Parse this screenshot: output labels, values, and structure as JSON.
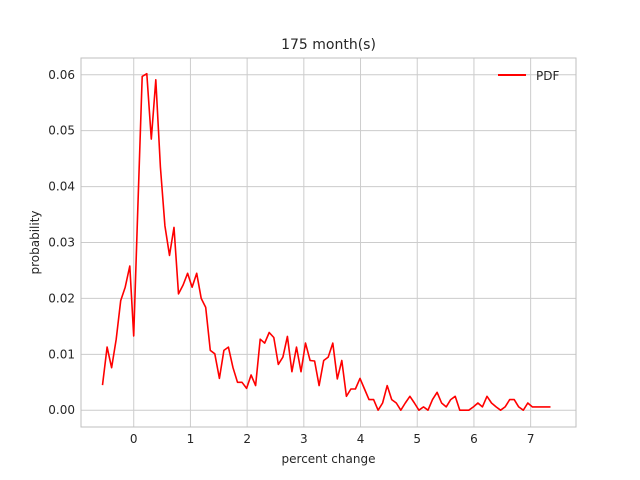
{
  "chart_data": {
    "type": "line",
    "title": "175 month(s)",
    "xlabel": "percent change",
    "ylabel": "probability",
    "xlim": [
      -0.93,
      7.8
    ],
    "ylim": [
      -0.003,
      0.063
    ],
    "xticks": [
      0,
      1,
      2,
      3,
      4,
      5,
      6,
      7
    ],
    "yticks": [
      0.0,
      0.01,
      0.02,
      0.03,
      0.04,
      0.05,
      0.06
    ],
    "ytick_labels": [
      "0.00",
      "0.01",
      "0.02",
      "0.03",
      "0.04",
      "0.05",
      "0.06"
    ],
    "grid": true,
    "legend_position": "top-right",
    "colors": {
      "line": "#ff0000",
      "grid": "#cccccc",
      "axes": "#bfbfbf"
    },
    "series": [
      {
        "name": "PDF",
        "x": [
          -0.55,
          -0.47,
          -0.39,
          -0.31,
          -0.23,
          -0.15,
          -0.07,
          0.0,
          0.07,
          0.15,
          0.23,
          0.31,
          0.39,
          0.47,
          0.55,
          0.63,
          0.71,
          0.79,
          0.87,
          0.95,
          1.03,
          1.11,
          1.19,
          1.27,
          1.35,
          1.43,
          1.51,
          1.59,
          1.67,
          1.75,
          1.83,
          1.91,
          1.99,
          2.07,
          2.15,
          2.23,
          2.31,
          2.39,
          2.47,
          2.55,
          2.63,
          2.71,
          2.79,
          2.87,
          2.95,
          3.03,
          3.11,
          3.19,
          3.27,
          3.35,
          3.43,
          3.51,
          3.59,
          3.67,
          3.75,
          3.83,
          3.91,
          3.99,
          4.07,
          4.15,
          4.23,
          4.31,
          4.39,
          4.47,
          4.55,
          4.63,
          4.71,
          4.79,
          4.87,
          4.95,
          5.03,
          5.11,
          5.19,
          5.27,
          5.35,
          5.43,
          5.51,
          5.59,
          5.67,
          5.75,
          5.83,
          5.91,
          5.99,
          6.07,
          6.15,
          6.23,
          6.31,
          6.39,
          6.47,
          6.55,
          6.63,
          6.71,
          6.79,
          6.87,
          6.95,
          7.03,
          7.11,
          7.19,
          7.27,
          7.35
        ],
        "values": [
          0.0045,
          0.0113,
          0.0076,
          0.0127,
          0.0196,
          0.022,
          0.0258,
          0.0133,
          0.0355,
          0.0597,
          0.0602,
          0.0485,
          0.0591,
          0.0435,
          0.033,
          0.0277,
          0.0327,
          0.0208,
          0.0224,
          0.0245,
          0.022,
          0.0245,
          0.02,
          0.0184,
          0.0107,
          0.0101,
          0.0057,
          0.0107,
          0.0113,
          0.0076,
          0.005,
          0.005,
          0.0039,
          0.0063,
          0.0044,
          0.0127,
          0.012,
          0.0139,
          0.013,
          0.0082,
          0.0095,
          0.0132,
          0.0069,
          0.0113,
          0.0069,
          0.012,
          0.0089,
          0.0088,
          0.0044,
          0.0089,
          0.0095,
          0.012,
          0.0056,
          0.0089,
          0.0025,
          0.0038,
          0.0038,
          0.0057,
          0.0038,
          0.0019,
          0.0019,
          0.0,
          0.0013,
          0.0044,
          0.0019,
          0.0013,
          0.0,
          0.0013,
          0.0025,
          0.0013,
          0.0,
          0.0006,
          0.0,
          0.0019,
          0.0032,
          0.0013,
          0.0006,
          0.0019,
          0.0025,
          0.0,
          0.0,
          0.0,
          0.0006,
          0.0013,
          0.0006,
          0.0025,
          0.0013,
          0.0006,
          0.0,
          0.0006,
          0.0019,
          0.0019,
          0.0006,
          0.0,
          0.0013,
          0.0006,
          0.0006,
          0.0006,
          0.0006,
          0.0006
        ]
      }
    ]
  }
}
